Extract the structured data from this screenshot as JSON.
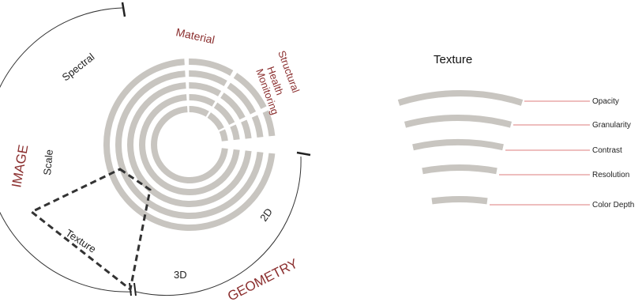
{
  "diagram": {
    "labels": {
      "image": "IMAGE",
      "geometry": "GEOMETRY",
      "material": "Material",
      "structural": "Structural",
      "health": "Health",
      "monitoring": "Monitoring",
      "spectral": "Spectral",
      "scale": "Scale",
      "texture": "Texture",
      "three_d": "3D",
      "two_d": "2D"
    }
  },
  "texture_panel": {
    "title": "Texture",
    "items": [
      "Opacity",
      "Granularity",
      "Contrast",
      "Resolution",
      "Color Depth"
    ]
  },
  "colors": {
    "ring": "#c8c5c0",
    "accent_red": "#8b2f2f",
    "leader_line": "#e8a8a8",
    "outline": "#333333"
  }
}
